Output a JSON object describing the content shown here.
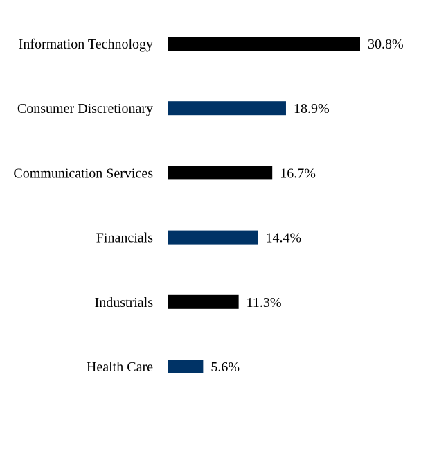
{
  "chart_data": {
    "type": "bar",
    "orientation": "horizontal",
    "categories": [
      "Information Technology",
      "Consumer Discretionary",
      "Communication Services",
      "Financials",
      "Industrials",
      "Health Care"
    ],
    "values": [
      30.8,
      18.9,
      16.7,
      14.4,
      11.3,
      5.6
    ],
    "value_labels": [
      "30.8%",
      "18.9%",
      "16.7%",
      "14.4%",
      "11.3%",
      "5.6%"
    ],
    "bar_colors": [
      "#000000",
      "#003366",
      "#000000",
      "#003366",
      "#000000",
      "#003366"
    ],
    "title": "",
    "xlabel": "",
    "ylabel": "",
    "grid": false,
    "legend": "none"
  }
}
